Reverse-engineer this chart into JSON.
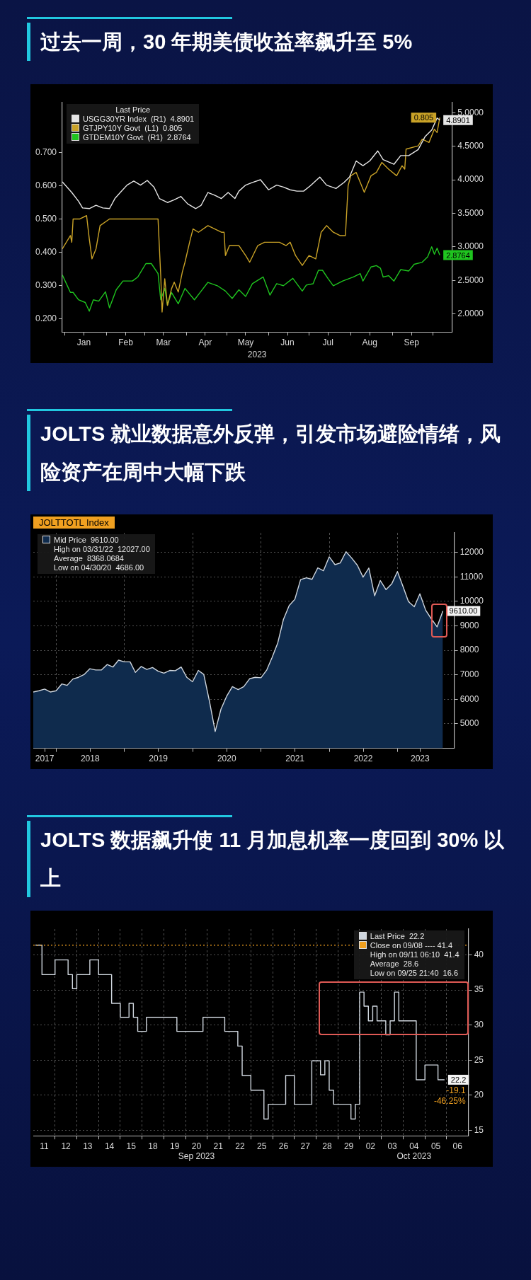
{
  "chart_data": [
    {
      "type": "line",
      "title": "过去一周，30 年期美债收益率飙升至 5%",
      "xlabel": "2023",
      "legend_title": "Last Price",
      "legend": "top left",
      "grid": false,
      "xlim": [
        "2022-12-30",
        "2023-10-15"
      ],
      "ylim": [
        0.16,
        0.85
      ],
      "y2lim": [
        1.73,
        5.15
      ],
      "xticks": [
        {
          "value": "2023-01-01",
          "label": null
        },
        {
          "value": "2023-01-15",
          "label": "Jan"
        },
        {
          "value": "2023-02-01",
          "label": null
        },
        {
          "value": "2023-02-15",
          "label": "Feb"
        },
        {
          "value": "2023-03-01",
          "label": null
        },
        {
          "value": "2023-03-15",
          "label": "Mar"
        },
        {
          "value": "2023-04-01",
          "label": null
        },
        {
          "value": "2023-04-15",
          "label": "Apr"
        },
        {
          "value": "2023-05-01",
          "label": null
        },
        {
          "value": "2023-05-15",
          "label": "May"
        },
        {
          "value": "2023-06-01",
          "label": null
        },
        {
          "value": "2023-06-15",
          "label": "Jun"
        },
        {
          "value": "2023-07-01",
          "label": null
        },
        {
          "value": "2023-07-15",
          "label": "Jul"
        },
        {
          "value": "2023-08-01",
          "label": null
        },
        {
          "value": "2023-08-15",
          "label": "Aug"
        },
        {
          "value": "2023-09-01",
          "label": null
        },
        {
          "value": "2023-09-15",
          "label": "Sep"
        },
        {
          "value": "2023-10-01",
          "label": null
        }
      ],
      "yticks": [
        {
          "value": 0.2,
          "label": "0.200"
        },
        {
          "value": 0.3,
          "label": "0.300"
        },
        {
          "value": 0.4,
          "label": "0.400"
        },
        {
          "value": 0.5,
          "label": "0.500"
        },
        {
          "value": 0.6,
          "label": "0.600"
        },
        {
          "value": 0.7,
          "label": "0.700"
        }
      ],
      "y2ticks": [
        {
          "value": 2,
          "label": "2.0000"
        },
        {
          "value": 2.5,
          "label": "2.5000"
        },
        {
          "value": 3,
          "label": "3.0000"
        },
        {
          "value": 3.5,
          "label": "3.5000"
        },
        {
          "value": 4,
          "label": "4.0000"
        },
        {
          "value": 4.5,
          "label": "4.5000"
        },
        {
          "value": 5,
          "label": "5.0000"
        }
      ],
      "series": [
        {
          "name": "USGG30YR Index  (R1)  4.8901",
          "color": "#e6e6e6",
          "axis": "y2",
          "x": [
            "2022-12-30",
            "2023-01-06",
            "2023-01-11",
            "2023-01-14",
            "2023-01-19",
            "2023-01-24",
            "2023-01-29",
            "2023-02-03",
            "2023-02-07",
            "2023-02-11",
            "2023-02-16",
            "2023-02-21",
            "2023-02-26",
            "2023-03-03",
            "2023-03-08",
            "2023-03-12",
            "2023-03-18",
            "2023-03-23",
            "2023-03-28",
            "2023-04-02",
            "2023-04-08",
            "2023-04-12",
            "2023-04-17",
            "2023-04-22",
            "2023-04-27",
            "2023-05-02",
            "2023-05-07",
            "2023-05-10",
            "2023-05-15",
            "2023-05-20",
            "2023-05-26",
            "2023-06-01",
            "2023-06-07",
            "2023-06-12",
            "2023-06-17",
            "2023-06-22",
            "2023-06-27",
            "2023-07-02",
            "2023-07-09",
            "2023-07-14",
            "2023-07-21",
            "2023-07-27",
            "2023-07-31",
            "2023-08-05",
            "2023-08-10",
            "2023-08-15",
            "2023-08-21",
            "2023-08-25",
            "2023-09-02",
            "2023-09-07",
            "2023-09-13",
            "2023-09-20",
            "2023-09-25",
            "2023-09-30",
            "2023-10-04",
            "2023-10-06"
          ],
          "values": [
            3.97,
            3.81,
            3.68,
            3.58,
            3.57,
            3.62,
            3.58,
            3.57,
            3.72,
            3.81,
            3.92,
            3.98,
            3.92,
            3.99,
            3.89,
            3.72,
            3.66,
            3.7,
            3.75,
            3.64,
            3.57,
            3.62,
            3.81,
            3.77,
            3.72,
            3.81,
            3.72,
            3.83,
            3.92,
            3.96,
            4.0,
            3.85,
            3.92,
            3.89,
            3.85,
            3.83,
            3.83,
            3.91,
            4.04,
            3.92,
            3.87,
            3.96,
            4.04,
            4.28,
            4.21,
            4.28,
            4.43,
            4.3,
            4.23,
            4.36,
            4.36,
            4.45,
            4.64,
            4.74,
            4.92,
            4.8901
          ],
          "value_labels": [
            null,
            null,
            null,
            null,
            null,
            null,
            null,
            null,
            null,
            null,
            null,
            null,
            null,
            null,
            null,
            null,
            null,
            null,
            null,
            null,
            null,
            null,
            null,
            null,
            null,
            null,
            null,
            null,
            null,
            null,
            null,
            null,
            null,
            null,
            null,
            null,
            null,
            null,
            null,
            null,
            null,
            null,
            null,
            null,
            null,
            null,
            null,
            null,
            null,
            null,
            null,
            null,
            null,
            null,
            null,
            "4.8901"
          ]
        },
        {
          "name": "GTJPY10Y Govt  (L1)  0.805",
          "color": "#c9a227",
          "axis": "y",
          "x": [
            "2022-12-30",
            "2023-01-05",
            "2023-01-06",
            "2023-01-07",
            "2023-01-12",
            "2023-01-17",
            "2023-01-19",
            "2023-01-21",
            "2023-01-24",
            "2023-01-27",
            "2023-02-03",
            "2023-02-13",
            "2023-03-11",
            "2023-03-13",
            "2023-03-14",
            "2023-03-16",
            "2023-03-18",
            "2023-03-21",
            "2023-03-23",
            "2023-03-26",
            "2023-03-29",
            "2023-03-31",
            "2023-04-04",
            "2023-04-06",
            "2023-04-10",
            "2023-04-17",
            "2023-04-27",
            "2023-04-29",
            "2023-04-30",
            "2023-05-03",
            "2023-05-10",
            "2023-05-15",
            "2023-05-18",
            "2023-05-24",
            "2023-05-29",
            "2023-06-04",
            "2023-06-09",
            "2023-06-14",
            "2023-06-17",
            "2023-06-21",
            "2023-06-26",
            "2023-07-01",
            "2023-07-06",
            "2023-07-10",
            "2023-07-14",
            "2023-07-19",
            "2023-07-24",
            "2023-07-28",
            "2023-07-30",
            "2023-08-01",
            "2023-08-05",
            "2023-08-11",
            "2023-08-16",
            "2023-08-20",
            "2023-08-24",
            "2023-08-29",
            "2023-09-04",
            "2023-09-08",
            "2023-09-10",
            "2023-09-11",
            "2023-09-20",
            "2023-09-23",
            "2023-09-28",
            "2023-10-02",
            "2023-10-04",
            "2023-10-06"
          ],
          "values": [
            0.41,
            0.45,
            0.43,
            0.5,
            0.5,
            0.51,
            0.44,
            0.38,
            0.41,
            0.48,
            0.5,
            0.5,
            0.5,
            0.33,
            0.22,
            0.32,
            0.24,
            0.29,
            0.31,
            0.28,
            0.34,
            0.37,
            0.44,
            0.47,
            0.46,
            0.48,
            0.46,
            0.46,
            0.39,
            0.42,
            0.42,
            0.39,
            0.37,
            0.42,
            0.43,
            0.43,
            0.43,
            0.42,
            0.43,
            0.39,
            0.36,
            0.39,
            0.38,
            0.46,
            0.48,
            0.46,
            0.45,
            0.45,
            0.6,
            0.63,
            0.64,
            0.58,
            0.63,
            0.64,
            0.67,
            0.65,
            0.63,
            0.66,
            0.65,
            0.71,
            0.72,
            0.74,
            0.73,
            0.77,
            0.76,
            0.805
          ],
          "value_labels": [
            null,
            null,
            null,
            null,
            null,
            null,
            null,
            null,
            null,
            null,
            null,
            null,
            null,
            null,
            null,
            null,
            null,
            null,
            null,
            null,
            null,
            null,
            null,
            null,
            null,
            null,
            null,
            null,
            null,
            null,
            null,
            null,
            null,
            null,
            null,
            null,
            null,
            null,
            null,
            null,
            null,
            null,
            null,
            null,
            null,
            null,
            null,
            null,
            null,
            null,
            null,
            null,
            null,
            null,
            null,
            null,
            null,
            null,
            null,
            null,
            null,
            null,
            null,
            null,
            null,
            "0.805"
          ]
        },
        {
          "name": "GTDEM10Y Govt  (R1)  2.8764",
          "color": "#1fc41f",
          "axis": "y2",
          "x": [
            "2022-12-30",
            "2023-01-05",
            "2023-01-07",
            "2023-01-11",
            "2023-01-16",
            "2023-01-19",
            "2023-01-22",
            "2023-01-26",
            "2023-01-31",
            "2023-02-03",
            "2023-02-08",
            "2023-02-13",
            "2023-02-20",
            "2023-02-24",
            "2023-03-02",
            "2023-03-06",
            "2023-03-11",
            "2023-03-13",
            "2023-03-16",
            "2023-03-18",
            "2023-03-21",
            "2023-03-26",
            "2023-03-31",
            "2023-04-07",
            "2023-04-12",
            "2023-04-17",
            "2023-04-24",
            "2023-04-30",
            "2023-05-05",
            "2023-05-10",
            "2023-05-15",
            "2023-05-20",
            "2023-05-28",
            "2023-06-02",
            "2023-06-07",
            "2023-06-12",
            "2023-06-19",
            "2023-06-26",
            "2023-06-29",
            "2023-07-04",
            "2023-07-08",
            "2023-07-11",
            "2023-07-15",
            "2023-07-19",
            "2023-07-26",
            "2023-08-03",
            "2023-08-08",
            "2023-08-10",
            "2023-08-16",
            "2023-08-20",
            "2023-08-23",
            "2023-08-25",
            "2023-08-29",
            "2023-09-02",
            "2023-09-07",
            "2023-09-13",
            "2023-09-17",
            "2023-09-23",
            "2023-09-27",
            "2023-09-30",
            "2023-10-02",
            "2023-10-04",
            "2023-10-06"
          ],
          "values": [
            2.58,
            2.32,
            2.32,
            2.21,
            2.17,
            2.04,
            2.21,
            2.19,
            2.33,
            2.09,
            2.36,
            2.49,
            2.49,
            2.55,
            2.75,
            2.75,
            2.6,
            2.21,
            2.38,
            2.13,
            2.32,
            2.15,
            2.38,
            2.21,
            2.34,
            2.47,
            2.42,
            2.34,
            2.23,
            2.36,
            2.26,
            2.45,
            2.55,
            2.28,
            2.45,
            2.42,
            2.53,
            2.34,
            2.43,
            2.45,
            2.65,
            2.65,
            2.53,
            2.42,
            2.49,
            2.55,
            2.6,
            2.49,
            2.7,
            2.72,
            2.68,
            2.55,
            2.57,
            2.49,
            2.66,
            2.64,
            2.74,
            2.77,
            2.85,
            3.0,
            2.89,
            2.98,
            2.8764
          ],
          "value_labels": [
            null,
            null,
            null,
            null,
            null,
            null,
            null,
            null,
            null,
            null,
            null,
            null,
            null,
            null,
            null,
            null,
            null,
            null,
            null,
            null,
            null,
            null,
            null,
            null,
            null,
            null,
            null,
            null,
            null,
            null,
            null,
            null,
            null,
            null,
            null,
            null,
            null,
            null,
            null,
            null,
            null,
            null,
            null,
            null,
            null,
            null,
            null,
            null,
            null,
            null,
            null,
            null,
            null,
            null,
            null,
            null,
            null,
            null,
            null,
            null,
            null,
            null,
            "2.8764"
          ]
        }
      ]
    },
    {
      "type": "area",
      "title": "JOLTS 就业数据意外反弹，引发市场避险情绪，风险资产在周中大幅下跌",
      "subtitle": "JOLTTOTL Index",
      "legend": "top left",
      "grid": true,
      "xlim": [
        "2017-08-31",
        "2023-10-31"
      ],
      "y2lim": [
        4000,
        12800
      ],
      "xticks": [
        {
          "value": "2017-10-31",
          "label": "2017"
        },
        {
          "value": "2018-01-01",
          "label": null
        },
        {
          "value": "2018-07-01",
          "label": "2018"
        },
        {
          "value": "2019-01-01",
          "label": null
        },
        {
          "value": "2019-07-01",
          "label": "2019"
        },
        {
          "value": "2020-01-01",
          "label": null
        },
        {
          "value": "2020-07-01",
          "label": "2020"
        },
        {
          "value": "2021-01-01",
          "label": null
        },
        {
          "value": "2021-07-01",
          "label": "2021"
        },
        {
          "value": "2022-01-01",
          "label": null
        },
        {
          "value": "2022-07-01",
          "label": "2022"
        },
        {
          "value": "2023-01-01",
          "label": null
        },
        {
          "value": "2023-05-01",
          "label": "2023"
        }
      ],
      "y2ticks": [
        5000,
        6000,
        7000,
        8000,
        9000,
        10000,
        11000,
        12000
      ],
      "annotations": [
        "High on 03/31/22  12027.00",
        "Average  8368.0684",
        "Low on 04/30/20  4686.00"
      ],
      "series": [
        {
          "name": "Mid Price  9610.00",
          "color": "#0f2b4d",
          "axis": "y2",
          "x": [
            "2017-08-31",
            "2017-09-30",
            "2017-10-31",
            "2017-11-30",
            "2017-12-31",
            "2018-01-31",
            "2018-02-28",
            "2018-03-31",
            "2018-04-30",
            "2018-05-31",
            "2018-06-30",
            "2018-07-31",
            "2018-08-31",
            "2018-09-30",
            "2018-10-31",
            "2018-11-30",
            "2018-12-31",
            "2019-01-31",
            "2019-02-28",
            "2019-03-31",
            "2019-04-30",
            "2019-05-31",
            "2019-06-30",
            "2019-07-31",
            "2019-08-31",
            "2019-09-30",
            "2019-10-31",
            "2019-11-30",
            "2019-12-31",
            "2020-01-31",
            "2020-02-29",
            "2020-03-31",
            "2020-04-30",
            "2020-05-31",
            "2020-06-30",
            "2020-07-31",
            "2020-08-31",
            "2020-09-30",
            "2020-10-31",
            "2020-11-30",
            "2020-12-31",
            "2021-01-31",
            "2021-02-28",
            "2021-03-31",
            "2021-04-30",
            "2021-05-31",
            "2021-06-30",
            "2021-07-31",
            "2021-08-31",
            "2021-09-30",
            "2021-10-31",
            "2021-11-30",
            "2021-12-31",
            "2022-01-31",
            "2022-02-28",
            "2022-03-31",
            "2022-04-30",
            "2022-05-31",
            "2022-06-30",
            "2022-07-31",
            "2022-08-31",
            "2022-09-30",
            "2022-10-31",
            "2022-11-30",
            "2022-12-31",
            "2023-01-31",
            "2023-02-28",
            "2023-03-31",
            "2023-04-30",
            "2023-05-31",
            "2023-06-30",
            "2023-07-31",
            "2023-08-31"
          ],
          "values": [
            6300,
            6350,
            6420,
            6300,
            6350,
            6630,
            6570,
            6830,
            6900,
            7020,
            7250,
            7200,
            7200,
            7420,
            7320,
            7600,
            7530,
            7530,
            7100,
            7340,
            7220,
            7300,
            7150,
            7070,
            7180,
            7170,
            7320,
            6900,
            6720,
            7180,
            7020,
            5900,
            4686,
            5600,
            6120,
            6520,
            6400,
            6520,
            6840,
            6900,
            6880,
            7200,
            7700,
            8310,
            9260,
            9830,
            10080,
            10890,
            10960,
            10900,
            11370,
            11250,
            11820,
            11500,
            11570,
            12027,
            11770,
            11470,
            10990,
            11360,
            10230,
            10850,
            10480,
            10710,
            11220,
            10580,
            9990,
            9780,
            10310,
            9640,
            9290,
            8960,
            9610
          ],
          "value_labels": [
            null,
            null,
            null,
            null,
            null,
            null,
            null,
            null,
            null,
            null,
            null,
            null,
            null,
            null,
            null,
            null,
            null,
            null,
            null,
            null,
            null,
            null,
            null,
            null,
            null,
            null,
            null,
            null,
            null,
            null,
            null,
            null,
            null,
            null,
            null,
            null,
            null,
            null,
            null,
            null,
            null,
            null,
            null,
            null,
            null,
            null,
            null,
            null,
            null,
            null,
            null,
            null,
            null,
            null,
            null,
            null,
            null,
            null,
            null,
            null,
            null,
            null,
            null,
            null,
            null,
            null,
            null,
            null,
            null,
            null,
            null,
            null,
            "9610.00"
          ]
        }
      ]
    },
    {
      "type": "step",
      "title": "JOLTS 数据飙升使 11 月加息机率一度回到 30% 以上",
      "legend": "top right",
      "grid": true,
      "categories": [
        null,
        null,
        "11",
        null,
        null,
        null,
        null,
        "12",
        null,
        null,
        null,
        null,
        "13",
        null,
        null,
        null,
        null,
        "14",
        null,
        null,
        null,
        null,
        "15",
        null,
        null,
        null,
        null,
        "18",
        null,
        null,
        null,
        null,
        "19",
        null,
        null,
        null,
        null,
        "20\nSep 2023",
        null,
        null,
        null,
        null,
        "21",
        null,
        null,
        null,
        null,
        "22",
        null,
        null,
        null,
        null,
        "25",
        null,
        null,
        null,
        null,
        "26",
        null,
        null,
        null,
        null,
        "27",
        null,
        null,
        null,
        null,
        "28",
        null,
        null,
        null,
        null,
        "29",
        null,
        null,
        null,
        null,
        "02",
        null,
        null,
        null,
        null,
        "03",
        null,
        null,
        null,
        null,
        "04\nOct 2023",
        null,
        null,
        null,
        null,
        "05",
        null,
        null,
        null,
        null,
        "06",
        null,
        null
      ],
      "y2lim": [
        14.2,
        43.7
      ],
      "y2ticks": [
        15,
        20,
        25,
        30,
        35,
        40
      ],
      "ref_lines": [
        {
          "axis": "y2",
          "value": 41.4,
          "label": "Close on 09/08 ---- 41.4",
          "color": "#f0a020",
          "line_style": "dotted"
        }
      ],
      "annotations": [
        "High on 09/11 06:10  41.4",
        "Average  28.6",
        "Low on 09/25 21:40  16.6",
        "-19.1\n-46.25%"
      ],
      "series": [
        {
          "name": "Last Price  22.2",
          "color": "#cfd6de",
          "axis": "y2",
          "values": [
            41.4,
            41.4,
            37.2,
            37.2,
            37.2,
            39.3,
            39.3,
            39.3,
            37.2,
            35.2,
            37.2,
            37.2,
            37.2,
            39.3,
            39.3,
            37.2,
            37.2,
            37.2,
            33.1,
            33.1,
            31.1,
            31.1,
            33.1,
            31.1,
            29.1,
            29.1,
            31.1,
            31.1,
            31.1,
            31.1,
            31.1,
            31.1,
            31.1,
            29.1,
            29.1,
            29.1,
            29.1,
            29.1,
            29.1,
            31.1,
            31.1,
            31.1,
            31.1,
            31.1,
            29.1,
            29.1,
            29.1,
            27.0,
            22.8,
            22.8,
            20.7,
            20.7,
            20.7,
            16.6,
            18.7,
            18.7,
            18.7,
            18.7,
            22.8,
            22.8,
            18.7,
            18.7,
            18.7,
            18.7,
            24.9,
            24.9,
            22.9,
            24.9,
            20.7,
            18.7,
            18.7,
            18.7,
            18.7,
            16.6,
            18.7,
            34.7,
            32.7,
            30.6,
            32.7,
            30.6,
            30.6,
            28.6,
            30.6,
            34.7,
            30.6,
            30.6,
            30.6,
            30.6,
            22.2,
            22.2,
            24.3,
            24.3,
            24.3,
            22.2,
            22.2,
            null,
            null,
            null,
            null,
            null
          ],
          "value_labels": [
            null,
            null,
            null,
            null,
            null,
            null,
            null,
            null,
            null,
            null,
            null,
            null,
            null,
            null,
            null,
            null,
            null,
            null,
            null,
            null,
            null,
            null,
            null,
            null,
            null,
            null,
            null,
            null,
            null,
            null,
            null,
            null,
            null,
            null,
            null,
            null,
            null,
            null,
            null,
            null,
            null,
            null,
            null,
            null,
            null,
            null,
            null,
            null,
            null,
            null,
            null,
            null,
            null,
            null,
            null,
            null,
            null,
            null,
            null,
            null,
            null,
            null,
            null,
            null,
            null,
            null,
            null,
            null,
            null,
            null,
            null,
            null,
            null,
            null,
            null,
            null,
            null,
            null,
            null,
            null,
            null,
            null,
            null,
            null,
            null,
            null,
            null,
            null,
            null,
            null,
            null,
            null,
            null,
            null,
            "22.2",
            null,
            null,
            null,
            null,
            null
          ]
        }
      ]
    }
  ]
}
